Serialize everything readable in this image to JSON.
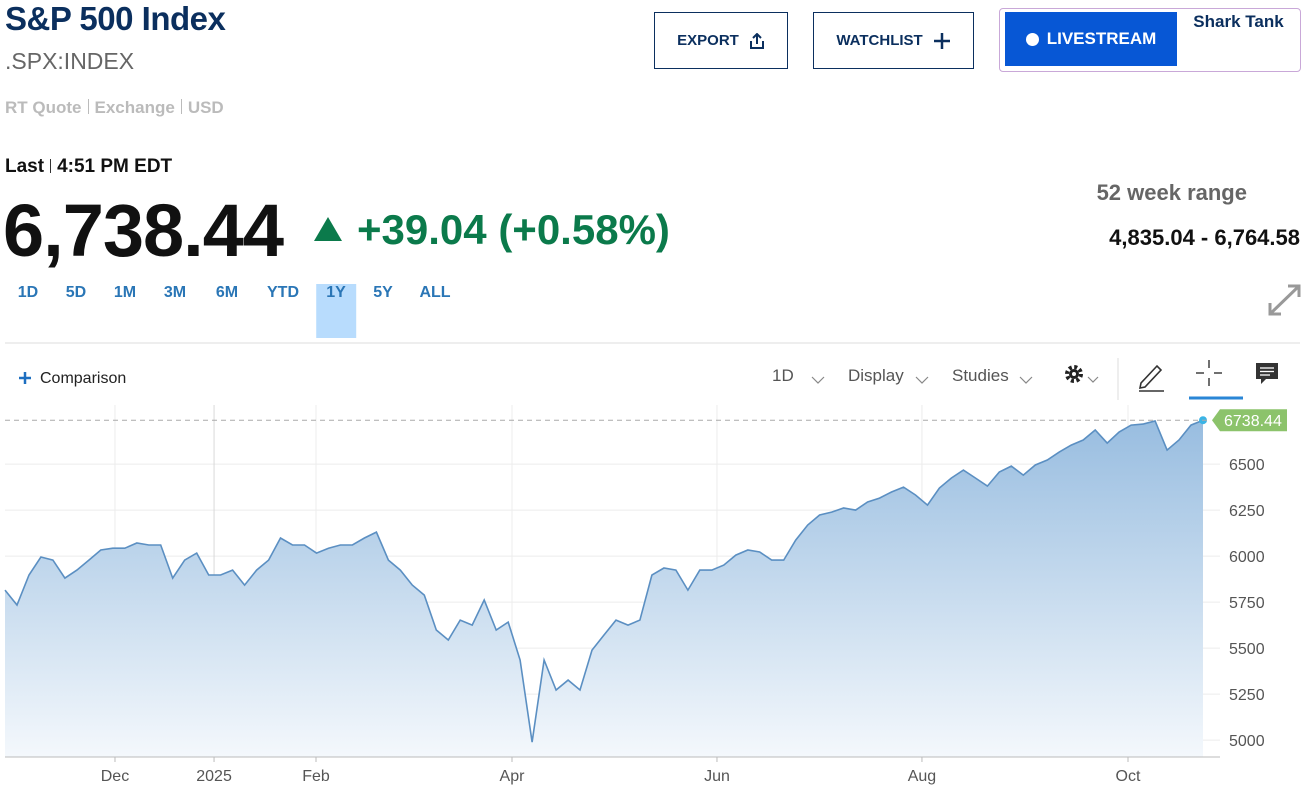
{
  "header": {
    "title": "S&P 500 Index",
    "symbol": ".SPX:INDEX",
    "meta": [
      "RT Quote",
      "Exchange",
      "USD"
    ],
    "buttons": {
      "export": "EXPORT",
      "watchlist": "WATCHLIST",
      "livestream": "LIVESTREAM",
      "show": "Shark Tank"
    }
  },
  "quote": {
    "last_label": "Last",
    "time": "4:51 PM EDT",
    "price": "6,738.44",
    "change": "+39.04",
    "change_percent": "(+0.58%)",
    "range_label": "52 week range",
    "range": "4,835.04 - 6,764.58"
  },
  "ranges": [
    "1D",
    "5D",
    "1M",
    "3M",
    "6M",
    "YTD",
    "1Y",
    "5Y",
    "ALL"
  ],
  "active_range": "1Y",
  "toolbar": {
    "comparison": "Comparison",
    "interval": "1D",
    "display": "Display",
    "studies": "Studies"
  },
  "chart_data": {
    "type": "area",
    "series": [
      {
        "color": "#5b8fc2",
        "values": [
          5815,
          5734,
          5897,
          5995,
          5978,
          5880,
          5924,
          5978,
          6033,
          6043,
          6043,
          6071,
          6060,
          6060,
          5880,
          5978,
          6016,
          5897,
          5897,
          5924,
          5842,
          5924,
          5978,
          6098,
          6060,
          6060,
          6016,
          6043,
          6060,
          6060,
          6098,
          6130,
          5978,
          5924,
          5842,
          5788,
          5598,
          5544,
          5652,
          5625,
          5761,
          5598,
          5641,
          5435,
          4989,
          5435,
          5272,
          5326,
          5272,
          5489,
          5571,
          5652,
          5625,
          5652,
          5897,
          5935,
          5924,
          5815,
          5924,
          5924,
          5951,
          6005,
          6033,
          6022,
          5978,
          5978,
          6087,
          6169,
          6223,
          6239,
          6261,
          6250,
          6294,
          6315,
          6348,
          6375,
          6332,
          6277,
          6370,
          6424,
          6467,
          6424,
          6380,
          6457,
          6489,
          6440,
          6495,
          6522,
          6565,
          6603,
          6631,
          6685,
          6614,
          6674,
          6712,
          6717,
          6734,
          6576,
          6631,
          6712,
          6738.44
        ]
      }
    ],
    "xlim": [
      0,
      100
    ],
    "xticks": [
      {
        "value": 9.18,
        "label": "Dec"
      },
      {
        "value": 17.45,
        "label": "2025"
      },
      {
        "value": 25.96,
        "label": "Feb"
      },
      {
        "value": 42.32,
        "label": "Apr"
      },
      {
        "value": 59.43,
        "label": "Jun"
      },
      {
        "value": 76.54,
        "label": "Aug"
      },
      {
        "value": 93.74,
        "label": "Oct"
      }
    ],
    "ylim": [
      4908,
      6821
    ],
    "yticks": [
      5000,
      5250,
      5500,
      5750,
      6000,
      6250,
      6500
    ],
    "marker": {
      "value": 6738.44,
      "label": "6738.44",
      "color": "#8cc36b"
    },
    "grid": true
  }
}
